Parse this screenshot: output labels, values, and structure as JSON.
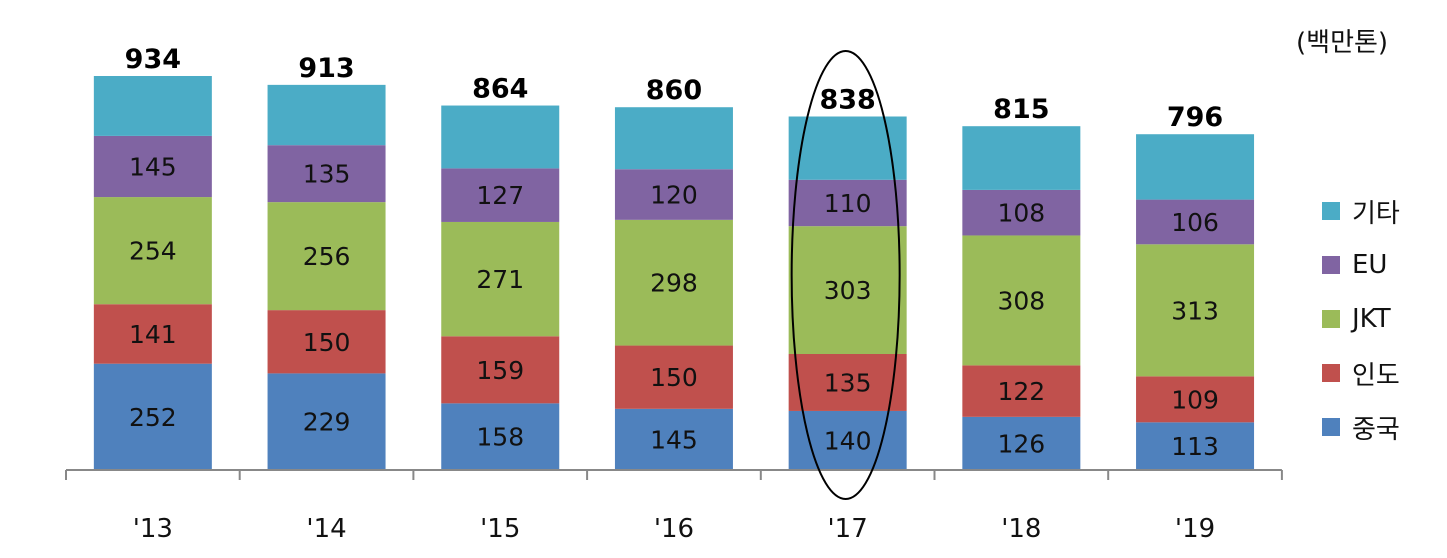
{
  "chart_data": {
    "type": "bar",
    "stacked": true,
    "unit_label": "(백만톤)",
    "categories": [
      "'13",
      "'14",
      "'15",
      "'16",
      "'17",
      "'18",
      "'19"
    ],
    "totals": [
      934,
      913,
      864,
      860,
      838,
      815,
      796
    ],
    "series": [
      {
        "name": "중국",
        "color": "#4f81bd",
        "values": [
          252,
          229,
          158,
          145,
          140,
          126,
          113
        ],
        "labeled": true
      },
      {
        "name": "인도",
        "color": "#c0504d",
        "values": [
          141,
          150,
          159,
          150,
          135,
          122,
          109
        ],
        "labeled": true
      },
      {
        "name": "JKT",
        "color": "#9bbb59",
        "values": [
          254,
          256,
          271,
          298,
          303,
          308,
          313
        ],
        "labeled": true
      },
      {
        "name": "EU",
        "color": "#8064a2",
        "values": [
          145,
          135,
          127,
          120,
          110,
          108,
          106
        ],
        "labeled": true
      },
      {
        "name": "기타",
        "color": "#4bacc6",
        "values": [
          142,
          143,
          149,
          147,
          150,
          151,
          155
        ],
        "labeled": false
      }
    ],
    "highlight_category": "'17",
    "ylim": [
      0,
      934
    ],
    "legend_position": "right"
  }
}
